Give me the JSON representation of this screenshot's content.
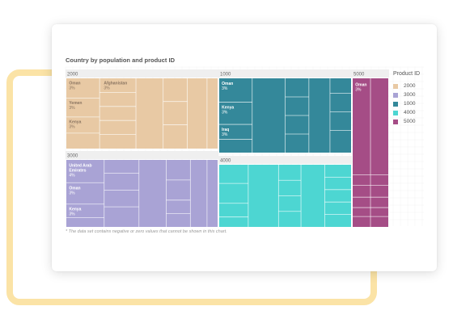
{
  "chart_data": {
    "type": "treemap",
    "title": "Country by population and product ID",
    "legend": {
      "title": "Product ID",
      "placement": "right",
      "items": [
        {
          "label": "2000",
          "color": "#e8c9a4"
        },
        {
          "label": "3000",
          "color": "#a9a3d5"
        },
        {
          "label": "1000",
          "color": "#34889a"
        },
        {
          "label": "4000",
          "color": "#4dd6d2"
        },
        {
          "label": "5000",
          "color": "#a54d86"
        }
      ]
    },
    "groups": [
      {
        "name": "2000",
        "color": "#e8c9a4",
        "label_color": "#8a7460",
        "cells": [
          {
            "name": "Oman",
            "value": "3%"
          },
          {
            "name": "Afghanistan",
            "value": "3%"
          },
          {
            "name": "Yemen",
            "value": "3%"
          },
          {
            "name": "Kenya",
            "value": "3%"
          }
        ]
      },
      {
        "name": "1000",
        "color": "#34889a",
        "label_color": "#ffffff",
        "cells": [
          {
            "name": "Oman",
            "value": "3%"
          },
          {
            "name": "Kenya",
            "value": "3%"
          },
          {
            "name": "Iraq",
            "value": "3%"
          }
        ]
      },
      {
        "name": "5000",
        "color": "#a54d86",
        "label_color": "#ffffff",
        "cells": [
          {
            "name": "Oman",
            "value": "3%"
          }
        ]
      },
      {
        "name": "3000",
        "color": "#a9a3d5",
        "label_color": "#ffffff",
        "cells": [
          {
            "name": "United Arab Emirates",
            "value": "4%"
          },
          {
            "name": "Oman",
            "value": "3%"
          },
          {
            "name": "Kenya",
            "value": "3%"
          }
        ]
      },
      {
        "name": "4000",
        "color": "#4dd6d2",
        "label_color": "#ffffff",
        "cells": []
      }
    ],
    "footnote": "* The data set contains negative or zero values that cannot be shown in this chart."
  }
}
